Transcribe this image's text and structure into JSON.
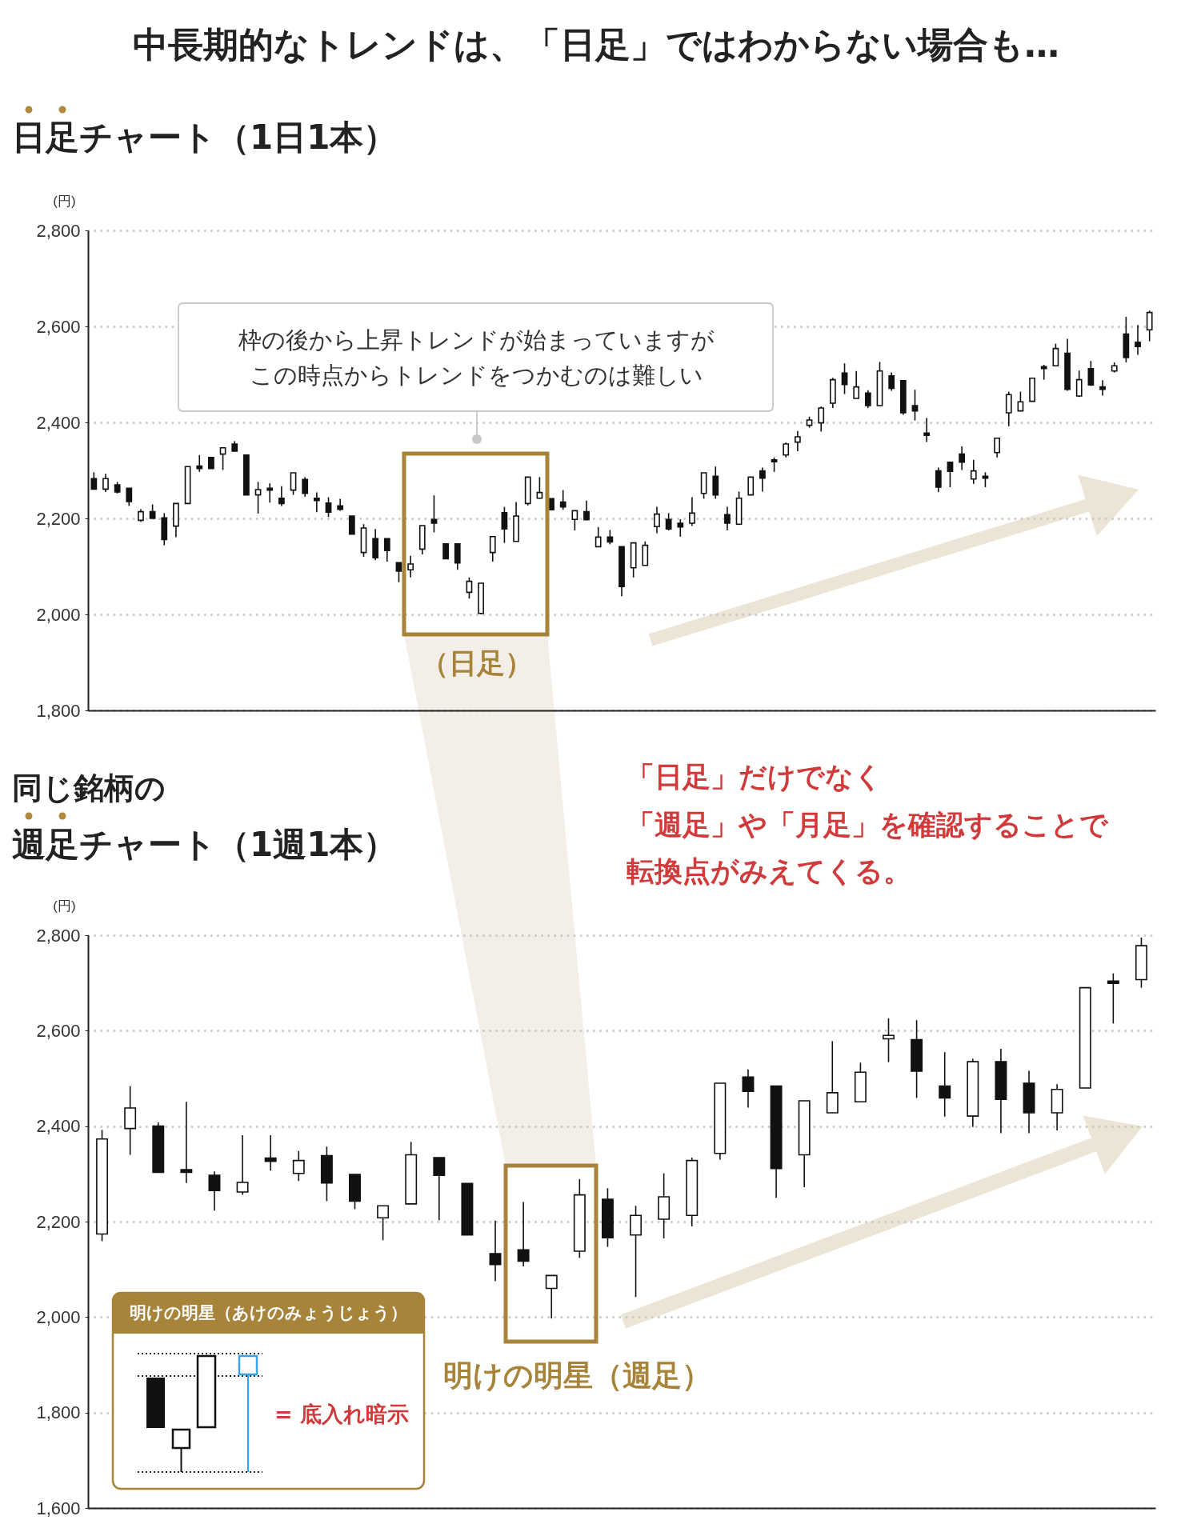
{
  "chart_data": [
    {
      "type": "candlestick",
      "title": "中長期的なトレンドは、「日足」ではわからない場合も…",
      "subtitle": "日足チャート（1日1本）",
      "ylabel": "(円)",
      "annotations": [
        "枠の後から上昇トレンドが始まっていますが",
        "この時点からトレンドをつかむのは難しい",
        "（日足）"
      ],
      "categories": [
        null,
        null,
        null,
        null,
        null,
        null,
        null,
        null,
        null,
        null,
        null,
        null,
        null,
        null,
        null,
        null,
        null,
        null,
        null,
        null,
        null,
        null,
        null,
        null,
        null,
        null,
        null,
        null,
        null,
        null,
        null,
        null,
        null,
        null,
        null,
        null,
        null,
        null,
        null,
        null,
        null,
        null,
        null,
        null,
        null,
        null,
        null,
        null,
        null,
        null,
        null,
        null,
        null,
        null,
        null,
        null,
        null,
        null,
        null,
        null,
        null,
        null,
        null,
        null,
        null,
        null,
        null,
        null,
        null,
        null,
        null,
        null,
        null,
        null,
        null,
        null,
        null,
        null,
        null,
        null,
        null,
        null,
        null,
        null,
        null,
        null,
        null,
        null,
        null,
        null,
        null
      ],
      "ohlc": [
        [
          2283,
          2296,
          2260,
          2261
        ],
        [
          2261,
          2293,
          2255,
          2283
        ],
        [
          2270,
          2276,
          2252,
          2255
        ],
        [
          2263,
          2263,
          2226,
          2235
        ],
        [
          2196,
          2219,
          2193,
          2214
        ],
        [
          2214,
          2229,
          2200,
          2200
        ],
        [
          2201,
          2211,
          2144,
          2156
        ],
        [
          2184,
          2231,
          2161,
          2231
        ],
        [
          2231,
          2308,
          2231,
          2308
        ],
        [
          2309,
          2332,
          2297,
          2304
        ],
        [
          2327,
          2327,
          2304,
          2304
        ],
        [
          2334,
          2347,
          2301,
          2347
        ],
        [
          2355,
          2361,
          2340,
          2340
        ],
        [
          2332,
          2332,
          2249,
          2249
        ],
        [
          2249,
          2276,
          2210,
          2260
        ],
        [
          2263,
          2273,
          2233,
          2259
        ],
        [
          2242,
          2267,
          2226,
          2231
        ],
        [
          2259,
          2295,
          2249,
          2295
        ],
        [
          2281,
          2286,
          2245,
          2252
        ],
        [
          2242,
          2254,
          2213,
          2237
        ],
        [
          2232,
          2244,
          2203,
          2213
        ],
        [
          2226,
          2241,
          2216,
          2219
        ],
        [
          2205,
          2205,
          2167,
          2167
        ],
        [
          2129,
          2188,
          2120,
          2180
        ],
        [
          2158,
          2178,
          2113,
          2118
        ],
        [
          2158,
          2158,
          2110,
          2133
        ],
        [
          2108,
          2108,
          2067,
          2090
        ],
        [
          2093,
          2122,
          2077,
          2105
        ],
        [
          2136,
          2185,
          2125,
          2185
        ],
        [
          2198,
          2248,
          2171,
          2190
        ],
        [
          2147,
          2147,
          2116,
          2116
        ],
        [
          2147,
          2147,
          2093,
          2107
        ],
        [
          2046,
          2077,
          2033,
          2069
        ],
        [
          2002,
          2065,
          2000,
          2065
        ],
        [
          2129,
          2162,
          2110,
          2162
        ],
        [
          2212,
          2224,
          2149,
          2178
        ],
        [
          2152,
          2234,
          2152,
          2205
        ],
        [
          2231,
          2286,
          2227,
          2286
        ],
        [
          2242,
          2286,
          2241,
          2254
        ],
        [
          2241,
          2241,
          2218,
          2218
        ],
        [
          2234,
          2259,
          2218,
          2224
        ],
        [
          2198,
          2216,
          2175,
          2216
        ],
        [
          2214,
          2237,
          2197,
          2197
        ],
        [
          2141,
          2182,
          2141,
          2161
        ],
        [
          2161,
          2176,
          2146,
          2151
        ],
        [
          2141,
          2141,
          2038,
          2058
        ],
        [
          2097,
          2149,
          2077,
          2149
        ],
        [
          2102,
          2152,
          2102,
          2144
        ],
        [
          2183,
          2224,
          2169,
          2209
        ],
        [
          2198,
          2211,
          2175,
          2178
        ],
        [
          2190,
          2198,
          2162,
          2182
        ],
        [
          2190,
          2244,
          2184,
          2211
        ],
        [
          2252,
          2295,
          2241,
          2295
        ],
        [
          2288,
          2308,
          2241,
          2249
        ],
        [
          2208,
          2224,
          2175,
          2190
        ],
        [
          2188,
          2256,
          2188,
          2242
        ],
        [
          2249,
          2286,
          2249,
          2286
        ],
        [
          2299,
          2306,
          2256,
          2284
        ],
        [
          2322,
          2327,
          2297,
          2318
        ],
        [
          2332,
          2358,
          2327,
          2355
        ],
        [
          2359,
          2382,
          2340,
          2370
        ],
        [
          2394,
          2412,
          2389,
          2405
        ],
        [
          2399,
          2433,
          2381,
          2430
        ],
        [
          2440,
          2493,
          2430,
          2489
        ],
        [
          2503,
          2523,
          2459,
          2479
        ],
        [
          2450,
          2507,
          2450,
          2474
        ],
        [
          2461,
          2467,
          2430,
          2435
        ],
        [
          2435,
          2526,
          2435,
          2507
        ],
        [
          2497,
          2504,
          2466,
          2471
        ],
        [
          2487,
          2487,
          2416,
          2420
        ],
        [
          2435,
          2468,
          2404,
          2424
        ],
        [
          2378,
          2409,
          2359,
          2373
        ],
        [
          2299,
          2306,
          2255,
          2265
        ],
        [
          2317,
          2317,
          2265,
          2298
        ],
        [
          2334,
          2350,
          2301,
          2317
        ],
        [
          2282,
          2322,
          2272,
          2299
        ],
        [
          2288,
          2296,
          2265,
          2284
        ],
        [
          2337,
          2367,
          2327,
          2367
        ],
        [
          2420,
          2464,
          2392,
          2458
        ],
        [
          2424,
          2464,
          2424,
          2443
        ],
        [
          2444,
          2492,
          2444,
          2492
        ],
        [
          2516,
          2520,
          2489,
          2512
        ],
        [
          2518,
          2564,
          2518,
          2554
        ],
        [
          2544,
          2574,
          2466,
          2469
        ],
        [
          2455,
          2508,
          2453,
          2489
        ],
        [
          2512,
          2528,
          2476,
          2478
        ],
        [
          2474,
          2488,
          2456,
          2469
        ],
        [
          2507,
          2525,
          2504,
          2518
        ],
        [
          2584,
          2620,
          2525,
          2535
        ],
        [
          2567,
          2603,
          2541,
          2558
        ],
        [
          2593,
          2633,
          2569,
          2629
        ]
      ],
      "color": "#111111",
      "ylim": [
        1800,
        2800
      ],
      "yticks": [
        {
          "value": 1800,
          "label": "1,800"
        },
        {
          "value": 2000,
          "label": "2,000"
        },
        {
          "value": 2200,
          "label": "2,200"
        },
        {
          "value": 2400,
          "label": "2,400"
        },
        {
          "value": 2600,
          "label": "2,600"
        },
        {
          "value": 2800,
          "label": "2,800"
        }
      ],
      "grid": "y",
      "tick_labels": "y"
    },
    {
      "type": "candlestick",
      "title": "週足チャート（1週1本）",
      "subtitle": "同じ銘柄の",
      "ylabel": "(円)",
      "annotations": [
        "「日足」だけでなく",
        "「週足」や「月足」を確認することで",
        "転換点がみえてくる。",
        "明けの明星（週足）",
        "明けの明星（あけのみょうじょう）",
        "= 底入れ暗示"
      ],
      "categories": [
        null,
        null,
        null,
        null,
        null,
        null,
        null,
        null,
        null,
        null,
        null,
        null,
        null,
        null,
        null,
        null,
        null,
        null,
        null,
        null,
        null,
        null,
        null,
        null,
        null,
        null,
        null,
        null,
        null,
        null,
        null,
        null,
        null,
        null,
        null,
        null,
        null,
        null
      ],
      "ohlc": [
        [
          2174,
          2392,
          2159,
          2373
        ],
        [
          2395,
          2484,
          2340,
          2438
        ],
        [
          2400,
          2408,
          2303,
          2303
        ],
        [
          2309,
          2451,
          2281,
          2303
        ],
        [
          2297,
          2305,
          2223,
          2265
        ],
        [
          2262,
          2381,
          2256,
          2282
        ],
        [
          2333,
          2381,
          2307,
          2326
        ],
        [
          2301,
          2348,
          2285,
          2328
        ],
        [
          2338,
          2357,
          2243,
          2281
        ],
        [
          2299,
          2299,
          2226,
          2243
        ],
        [
          2208,
          2233,
          2161,
          2233
        ],
        [
          2237,
          2367,
          2237,
          2340
        ],
        [
          2334,
          2334,
          2203,
          2297
        ],
        [
          2280,
          2280,
          2172,
          2172
        ],
        [
          2133,
          2202,
          2075,
          2110
        ],
        [
          2141,
          2241,
          2106,
          2117
        ],
        [
          2060,
          2087,
          1997,
          2087
        ],
        [
          2138,
          2289,
          2124,
          2256
        ],
        [
          2247,
          2270,
          2147,
          2166
        ],
        [
          2172,
          2233,
          2042,
          2213
        ],
        [
          2205,
          2301,
          2165,
          2252
        ],
        [
          2213,
          2334,
          2190,
          2328
        ],
        [
          2343,
          2490,
          2330,
          2490
        ],
        [
          2503,
          2519,
          2439,
          2473
        ],
        [
          2484,
          2484,
          2250,
          2311
        ],
        [
          2340,
          2453,
          2272,
          2453
        ],
        [
          2428,
          2578,
          2428,
          2470
        ],
        [
          2451,
          2533,
          2451,
          2513
        ],
        [
          2583,
          2626,
          2534,
          2590
        ],
        [
          2581,
          2622,
          2459,
          2515
        ],
        [
          2484,
          2555,
          2420,
          2459
        ],
        [
          2421,
          2541,
          2398,
          2535
        ],
        [
          2535,
          2562,
          2385,
          2456
        ],
        [
          2490,
          2516,
          2385,
          2428
        ],
        [
          2428,
          2488,
          2391,
          2477
        ],
        [
          2480,
          2690,
          2480,
          2690
        ],
        [
          2704,
          2720,
          2615,
          2699
        ],
        [
          2707,
          2795,
          2690,
          2778
        ]
      ],
      "color": "#111111",
      "ylim": [
        1600,
        2800
      ],
      "yticks": [
        {
          "value": 1600,
          "label": "1,600"
        },
        {
          "value": 1800,
          "label": "1,800"
        },
        {
          "value": 2000,
          "label": "2,000"
        },
        {
          "value": 2200,
          "label": "2,200"
        },
        {
          "value": 2400,
          "label": "2,400"
        },
        {
          "value": 2600,
          "label": "2,600"
        },
        {
          "value": 2800,
          "label": "2,800"
        }
      ],
      "grid": "y",
      "tick_labels": "y"
    }
  ]
}
